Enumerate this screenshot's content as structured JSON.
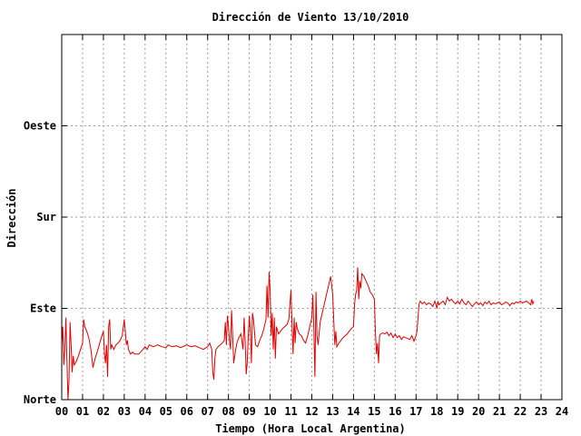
{
  "chart_data": {
    "type": "line",
    "title": "Dirección de Viento 13/10/2010",
    "xlabel": "Tiempo (Hora Local Argentina)",
    "ylabel": "Dirección",
    "xlim": [
      0,
      24
    ],
    "ylim": [
      0,
      4
    ],
    "x_ticks": [
      "00",
      "01",
      "02",
      "03",
      "04",
      "05",
      "06",
      "07",
      "08",
      "09",
      "10",
      "11",
      "12",
      "13",
      "14",
      "15",
      "16",
      "17",
      "18",
      "19",
      "20",
      "21",
      "22",
      "23",
      "24"
    ],
    "y_ticks": [
      {
        "value": 0,
        "label": "Norte"
      },
      {
        "value": 1,
        "label": "Este"
      },
      {
        "value": 2,
        "label": "Sur"
      },
      {
        "value": 3,
        "label": "Oeste"
      }
    ],
    "grid": true,
    "series": [
      {
        "color": "#e00000",
        "points": [
          [
            0.0,
            0.62
          ],
          [
            0.05,
            0.8
          ],
          [
            0.1,
            0.38
          ],
          [
            0.15,
            0.55
          ],
          [
            0.2,
            0.9
          ],
          [
            0.25,
            0.45
          ],
          [
            0.3,
            0.0
          ],
          [
            0.35,
            0.2
          ],
          [
            0.4,
            0.85
          ],
          [
            0.45,
            0.6
          ],
          [
            0.5,
            0.3
          ],
          [
            0.55,
            0.48
          ],
          [
            0.6,
            0.38
          ],
          [
            0.7,
            0.42
          ],
          [
            0.8,
            0.48
          ],
          [
            0.9,
            0.55
          ],
          [
            1.0,
            0.62
          ],
          [
            1.05,
            0.88
          ],
          [
            1.1,
            0.8
          ],
          [
            1.2,
            0.75
          ],
          [
            1.3,
            0.68
          ],
          [
            1.4,
            0.55
          ],
          [
            1.5,
            0.35
          ],
          [
            1.6,
            0.45
          ],
          [
            1.7,
            0.52
          ],
          [
            1.8,
            0.6
          ],
          [
            1.9,
            0.68
          ],
          [
            2.0,
            0.75
          ],
          [
            2.05,
            0.5
          ],
          [
            2.1,
            0.4
          ],
          [
            2.15,
            0.6
          ],
          [
            2.2,
            0.25
          ],
          [
            2.25,
            0.8
          ],
          [
            2.3,
            0.88
          ],
          [
            2.35,
            0.55
          ],
          [
            2.4,
            0.6
          ],
          [
            2.5,
            0.55
          ],
          [
            2.6,
            0.6
          ],
          [
            2.7,
            0.62
          ],
          [
            2.8,
            0.65
          ],
          [
            2.9,
            0.7
          ],
          [
            3.0,
            0.88
          ],
          [
            3.05,
            0.75
          ],
          [
            3.1,
            0.6
          ],
          [
            3.15,
            0.65
          ],
          [
            3.2,
            0.55
          ],
          [
            3.3,
            0.5
          ],
          [
            3.4,
            0.52
          ],
          [
            3.5,
            0.5
          ],
          [
            3.7,
            0.5
          ],
          [
            3.9,
            0.55
          ],
          [
            4.0,
            0.58
          ],
          [
            4.1,
            0.55
          ],
          [
            4.2,
            0.6
          ],
          [
            4.4,
            0.58
          ],
          [
            4.6,
            0.6
          ],
          [
            4.8,
            0.58
          ],
          [
            5.0,
            0.57
          ],
          [
            5.1,
            0.6
          ],
          [
            5.3,
            0.58
          ],
          [
            5.5,
            0.59
          ],
          [
            5.7,
            0.57
          ],
          [
            6.0,
            0.6
          ],
          [
            6.2,
            0.58
          ],
          [
            6.4,
            0.59
          ],
          [
            6.6,
            0.57
          ],
          [
            6.8,
            0.55
          ],
          [
            7.0,
            0.58
          ],
          [
            7.1,
            0.62
          ],
          [
            7.2,
            0.55
          ],
          [
            7.25,
            0.3
          ],
          [
            7.3,
            0.22
          ],
          [
            7.35,
            0.45
          ],
          [
            7.4,
            0.55
          ],
          [
            7.5,
            0.58
          ],
          [
            7.6,
            0.6
          ],
          [
            7.7,
            0.62
          ],
          [
            7.8,
            0.65
          ],
          [
            7.85,
            0.85
          ],
          [
            7.9,
            0.6
          ],
          [
            7.95,
            0.92
          ],
          [
            8.0,
            0.8
          ],
          [
            8.05,
            0.65
          ],
          [
            8.1,
            0.55
          ],
          [
            8.15,
            0.98
          ],
          [
            8.2,
            0.7
          ],
          [
            8.25,
            0.4
          ],
          [
            8.3,
            0.48
          ],
          [
            8.35,
            0.55
          ],
          [
            8.4,
            0.62
          ],
          [
            8.5,
            0.68
          ],
          [
            8.6,
            0.72
          ],
          [
            8.7,
            0.55
          ],
          [
            8.75,
            0.9
          ],
          [
            8.8,
            0.65
          ],
          [
            8.85,
            0.28
          ],
          [
            8.9,
            0.4
          ],
          [
            8.95,
            0.7
          ],
          [
            9.0,
            0.92
          ],
          [
            9.05,
            0.75
          ],
          [
            9.1,
            0.4
          ],
          [
            9.15,
            0.95
          ],
          [
            9.2,
            0.88
          ],
          [
            9.3,
            0.6
          ],
          [
            9.4,
            0.58
          ],
          [
            9.5,
            0.65
          ],
          [
            9.6,
            0.7
          ],
          [
            9.7,
            0.78
          ],
          [
            9.8,
            0.88
          ],
          [
            9.85,
            1.25
          ],
          [
            9.9,
            0.9
          ],
          [
            9.95,
            1.4
          ],
          [
            10.0,
            1.2
          ],
          [
            10.05,
            0.7
          ],
          [
            10.1,
            0.95
          ],
          [
            10.15,
            0.55
          ],
          [
            10.2,
            0.9
          ],
          [
            10.25,
            0.45
          ],
          [
            10.3,
            0.8
          ],
          [
            10.4,
            0.72
          ],
          [
            10.5,
            0.75
          ],
          [
            10.6,
            0.78
          ],
          [
            10.7,
            0.8
          ],
          [
            10.8,
            0.82
          ],
          [
            10.9,
            0.88
          ],
          [
            11.0,
            1.2
          ],
          [
            11.05,
            0.82
          ],
          [
            11.1,
            0.5
          ],
          [
            11.15,
            0.9
          ],
          [
            11.2,
            0.62
          ],
          [
            11.25,
            0.85
          ],
          [
            11.3,
            0.78
          ],
          [
            11.4,
            0.72
          ],
          [
            11.5,
            0.7
          ],
          [
            11.6,
            0.65
          ],
          [
            11.7,
            0.62
          ],
          [
            11.8,
            0.7
          ],
          [
            11.9,
            0.8
          ],
          [
            12.0,
            0.9
          ],
          [
            12.05,
            1.15
          ],
          [
            12.1,
            0.75
          ],
          [
            12.15,
            0.25
          ],
          [
            12.2,
            1.18
          ],
          [
            12.25,
            0.7
          ],
          [
            12.3,
            0.6
          ],
          [
            12.4,
            0.85
          ],
          [
            12.5,
            0.95
          ],
          [
            12.6,
            1.05
          ],
          [
            12.7,
            1.15
          ],
          [
            12.8,
            1.25
          ],
          [
            12.9,
            1.35
          ],
          [
            13.0,
            1.15
          ],
          [
            13.05,
            0.88
          ],
          [
            13.1,
            0.6
          ],
          [
            13.15,
            0.75
          ],
          [
            13.2,
            0.58
          ],
          [
            13.3,
            0.62
          ],
          [
            13.4,
            0.65
          ],
          [
            13.5,
            0.68
          ],
          [
            13.6,
            0.7
          ],
          [
            13.7,
            0.72
          ],
          [
            13.8,
            0.75
          ],
          [
            13.9,
            0.78
          ],
          [
            14.0,
            0.8
          ],
          [
            14.05,
            1.05
          ],
          [
            14.1,
            1.15
          ],
          [
            14.15,
            1.2
          ],
          [
            14.2,
            1.45
          ],
          [
            14.25,
            1.1
          ],
          [
            14.3,
            1.3
          ],
          [
            14.35,
            1.22
          ],
          [
            14.4,
            1.38
          ],
          [
            14.5,
            1.35
          ],
          [
            14.6,
            1.3
          ],
          [
            14.7,
            1.25
          ],
          [
            14.8,
            1.18
          ],
          [
            14.9,
            1.15
          ],
          [
            15.0,
            1.1
          ],
          [
            15.05,
            0.75
          ],
          [
            15.1,
            0.5
          ],
          [
            15.15,
            0.62
          ],
          [
            15.2,
            0.4
          ],
          [
            15.25,
            0.7
          ],
          [
            15.3,
            0.72
          ],
          [
            15.4,
            0.73
          ],
          [
            15.5,
            0.72
          ],
          [
            15.6,
            0.74
          ],
          [
            15.7,
            0.7
          ],
          [
            15.8,
            0.73
          ],
          [
            15.9,
            0.68
          ],
          [
            16.0,
            0.72
          ],
          [
            16.1,
            0.68
          ],
          [
            16.2,
            0.7
          ],
          [
            16.3,
            0.66
          ],
          [
            16.4,
            0.69
          ],
          [
            16.5,
            0.68
          ],
          [
            16.6,
            0.67
          ],
          [
            16.7,
            0.66
          ],
          [
            16.8,
            0.7
          ],
          [
            16.9,
            0.64
          ],
          [
            17.0,
            0.7
          ],
          [
            17.05,
            0.75
          ],
          [
            17.1,
            0.92
          ],
          [
            17.15,
            1.05
          ],
          [
            17.2,
            1.08
          ],
          [
            17.3,
            1.05
          ],
          [
            17.4,
            1.07
          ],
          [
            17.5,
            1.04
          ],
          [
            17.6,
            1.06
          ],
          [
            17.7,
            1.05
          ],
          [
            17.8,
            1.02
          ],
          [
            17.9,
            1.08
          ],
          [
            18.0,
            1.0
          ],
          [
            18.05,
            1.08
          ],
          [
            18.1,
            1.04
          ],
          [
            18.2,
            1.06
          ],
          [
            18.3,
            1.08
          ],
          [
            18.4,
            1.04
          ],
          [
            18.5,
            1.12
          ],
          [
            18.6,
            1.08
          ],
          [
            18.7,
            1.1
          ],
          [
            18.8,
            1.07
          ],
          [
            18.9,
            1.05
          ],
          [
            19.0,
            1.08
          ],
          [
            19.1,
            1.05
          ],
          [
            19.2,
            1.1
          ],
          [
            19.3,
            1.06
          ],
          [
            19.4,
            1.04
          ],
          [
            19.5,
            1.08
          ],
          [
            19.6,
            1.05
          ],
          [
            19.7,
            1.02
          ],
          [
            19.8,
            1.05
          ],
          [
            19.9,
            1.07
          ],
          [
            20.0,
            1.04
          ],
          [
            20.1,
            1.06
          ],
          [
            20.2,
            1.03
          ],
          [
            20.3,
            1.07
          ],
          [
            20.4,
            1.05
          ],
          [
            20.5,
            1.08
          ],
          [
            20.6,
            1.04
          ],
          [
            20.7,
            1.06
          ],
          [
            20.8,
            1.05
          ],
          [
            20.9,
            1.06
          ],
          [
            21.0,
            1.07
          ],
          [
            21.1,
            1.04
          ],
          [
            21.2,
            1.05
          ],
          [
            21.3,
            1.07
          ],
          [
            21.4,
            1.06
          ],
          [
            21.5,
            1.03
          ],
          [
            21.6,
            1.06
          ],
          [
            21.7,
            1.05
          ],
          [
            21.8,
            1.07
          ],
          [
            21.9,
            1.06
          ],
          [
            22.0,
            1.08
          ],
          [
            22.1,
            1.06
          ],
          [
            22.2,
            1.07
          ],
          [
            22.3,
            1.08
          ],
          [
            22.4,
            1.06
          ],
          [
            22.5,
            1.04
          ],
          [
            22.55,
            1.1
          ],
          [
            22.6,
            1.05
          ],
          [
            22.65,
            1.08
          ]
        ]
      }
    ]
  }
}
